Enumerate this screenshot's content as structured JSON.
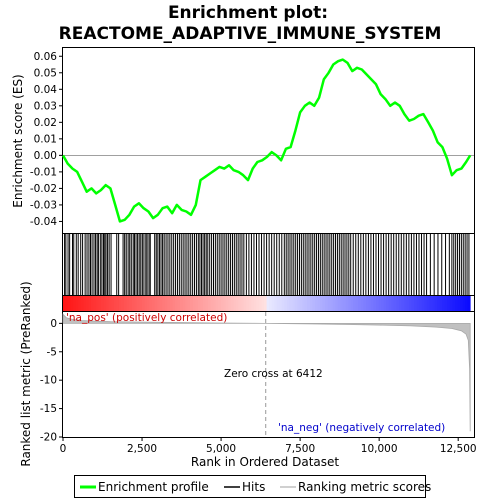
{
  "chart_data": {
    "type": "line",
    "title": [
      "Enrichment plot:",
      "REACTOME_ADAPTIVE_IMMUNE_SYSTEM"
    ],
    "top_panel": {
      "ylabel": "Enrichment score (ES)",
      "ylim": [
        -0.047,
        0.065
      ],
      "yticks": [
        -0.04,
        -0.03,
        -0.02,
        -0.01,
        0.0,
        0.01,
        0.02,
        0.03,
        0.04,
        0.05,
        0.06
      ],
      "ytick_labels": [
        "-0.04",
        "-0.03",
        "-0.02",
        "-0.01",
        "0.00",
        "0.01",
        "0.02",
        "0.03",
        "0.04",
        "0.05",
        "0.06"
      ],
      "series": [
        {
          "name": "Enrichment profile",
          "color": "#00ff00",
          "x": [
            0,
            150,
            300,
            450,
            600,
            750,
            900,
            1050,
            1200,
            1350,
            1500,
            1650,
            1800,
            1950,
            2100,
            2250,
            2400,
            2550,
            2700,
            2850,
            3000,
            3150,
            3300,
            3450,
            3600,
            3750,
            3900,
            4050,
            4200,
            4350,
            4500,
            4650,
            4800,
            4950,
            5100,
            5250,
            5400,
            5550,
            5700,
            5850,
            6000,
            6150,
            6300,
            6450,
            6600,
            6750,
            6900,
            7050,
            7200,
            7350,
            7500,
            7650,
            7800,
            7950,
            8100,
            8250,
            8400,
            8550,
            8700,
            8850,
            9000,
            9150,
            9300,
            9450,
            9600,
            9750,
            9900,
            10050,
            10200,
            10350,
            10500,
            10650,
            10800,
            10950,
            11100,
            11250,
            11400,
            11550,
            11700,
            11850,
            12000,
            12150,
            12300,
            12450,
            12600,
            12750,
            12880
          ],
          "values": [
            0.0,
            -0.005,
            -0.008,
            -0.01,
            -0.016,
            -0.022,
            -0.02,
            -0.023,
            -0.021,
            -0.018,
            -0.02,
            -0.03,
            -0.04,
            -0.039,
            -0.036,
            -0.031,
            -0.029,
            -0.032,
            -0.034,
            -0.038,
            -0.036,
            -0.032,
            -0.031,
            -0.035,
            -0.03,
            -0.033,
            -0.034,
            -0.036,
            -0.03,
            -0.015,
            -0.013,
            -0.011,
            -0.009,
            -0.007,
            -0.008,
            -0.006,
            -0.009,
            -0.01,
            -0.012,
            -0.015,
            -0.008,
            -0.004,
            -0.003,
            -0.001,
            0.002,
            0.0,
            -0.003,
            0.004,
            0.005,
            0.015,
            0.026,
            0.03,
            0.032,
            0.03,
            0.035,
            0.046,
            0.05,
            0.055,
            0.057,
            0.058,
            0.056,
            0.051,
            0.053,
            0.052,
            0.049,
            0.046,
            0.043,
            0.037,
            0.034,
            0.03,
            0.032,
            0.03,
            0.025,
            0.021,
            0.022,
            0.024,
            0.025,
            0.02,
            0.015,
            0.008,
            0.005,
            -0.002,
            -0.012,
            -0.009,
            -0.008,
            -0.004,
            0.0
          ]
        }
      ]
    },
    "bottom_panel": {
      "ylabel": "Ranked list metric (PreRanked)",
      "xlabel": "Rank in Ordered Dataset",
      "ylim": [
        -20,
        2.0
      ],
      "yticks": [
        -20,
        -15,
        -10,
        -5,
        0
      ],
      "ytick_labels": [
        "-20",
        "-15",
        "-10",
        "-5",
        "0"
      ],
      "xlim": [
        0,
        13000
      ],
      "xticks": [
        0,
        2500,
        5000,
        7500,
        10000,
        12500
      ],
      "xtick_labels": [
        "0",
        "2,500",
        "5,000",
        "7,500",
        "10,000",
        "12,500"
      ],
      "metric_curve": {
        "name": "Ranking metric scores",
        "color": "#c0c0c0",
        "x": [
          0,
          100,
          300,
          600,
          1000,
          1500,
          2000,
          3000,
          4000,
          5000,
          6000,
          6412,
          7000,
          8000,
          9000,
          10000,
          11000,
          11800,
          12300,
          12600,
          12750,
          12820,
          12860,
          12880
        ],
        "values": [
          1.6,
          1.0,
          0.7,
          0.5,
          0.4,
          0.3,
          0.25,
          0.18,
          0.12,
          0.07,
          0.02,
          0.0,
          -0.05,
          -0.12,
          -0.2,
          -0.3,
          -0.45,
          -0.65,
          -0.9,
          -1.3,
          -1.9,
          -3.0,
          -8.0,
          -19.0
        ]
      },
      "zero_cross_rank": 6412,
      "total_ranks": 12880,
      "annotations": {
        "zero_cross": "Zero cross at 6412",
        "pos_label": "'na_pos' (positively correlated)",
        "neg_label": "'na_neg' (negatively correlated)"
      }
    },
    "hit_positions": [
      50,
      90,
      160,
      210,
      300,
      340,
      420,
      480,
      560,
      620,
      700,
      760,
      820,
      870,
      920,
      980,
      1030,
      1080,
      1120,
      1180,
      1230,
      1280,
      1320,
      1360,
      1410,
      1460,
      1520,
      1700,
      1760,
      1900,
      1950,
      2000,
      2060,
      2110,
      2160,
      2220,
      2260,
      2310,
      2360,
      2410,
      2460,
      2510,
      2560,
      2620,
      2660,
      2720,
      2760,
      2900,
      2950,
      3000,
      3050,
      3100,
      3150,
      3200,
      3260,
      3320,
      3380,
      3440,
      3500,
      3560,
      3620,
      3680,
      3740,
      3800,
      3860,
      3920,
      3980,
      4040,
      4100,
      4160,
      4220,
      4280,
      4330,
      4380,
      4430,
      4480,
      4530,
      4580,
      4640,
      4700,
      4760,
      4820,
      4880,
      4940,
      5000,
      5060,
      5120,
      5180,
      5240,
      5300,
      5360,
      5420,
      5480,
      5540,
      5600,
      5660,
      5720,
      5800,
      5880,
      5960,
      6040,
      6120,
      6200,
      6280,
      6360,
      6440,
      6520,
      6600,
      6680,
      6760,
      6840,
      6920,
      7000,
      7060,
      7120,
      7180,
      7240,
      7300,
      7360,
      7420,
      7480,
      7540,
      7600,
      7660,
      7720,
      7780,
      7840,
      7900,
      7960,
      8020,
      8080,
      8140,
      8200,
      8260,
      8320,
      8380,
      8440,
      8500,
      8560,
      8620,
      8680,
      8740,
      8800,
      8860,
      8920,
      8980,
      9040,
      9100,
      9180,
      9260,
      9340,
      9420,
      9500,
      9580,
      9660,
      9740,
      9820,
      9900,
      9980,
      10060,
      10140,
      10220,
      10300,
      10380,
      10460,
      10540,
      10620,
      10700,
      10780,
      10860,
      10940,
      11020,
      11100,
      11180,
      11260,
      11340,
      11420,
      11500,
      11620,
      11740,
      11860,
      11980,
      12100,
      12220,
      12300,
      12360,
      12420,
      12480,
      12540,
      12600,
      12660,
      12720,
      12780,
      12840
    ],
    "legend": {
      "items": [
        {
          "label": "Enrichment profile",
          "color": "#00ff00"
        },
        {
          "label": "Hits",
          "color": "#000000"
        },
        {
          "label": "Ranking metric scores",
          "color": "#c0c0c0"
        }
      ]
    }
  }
}
